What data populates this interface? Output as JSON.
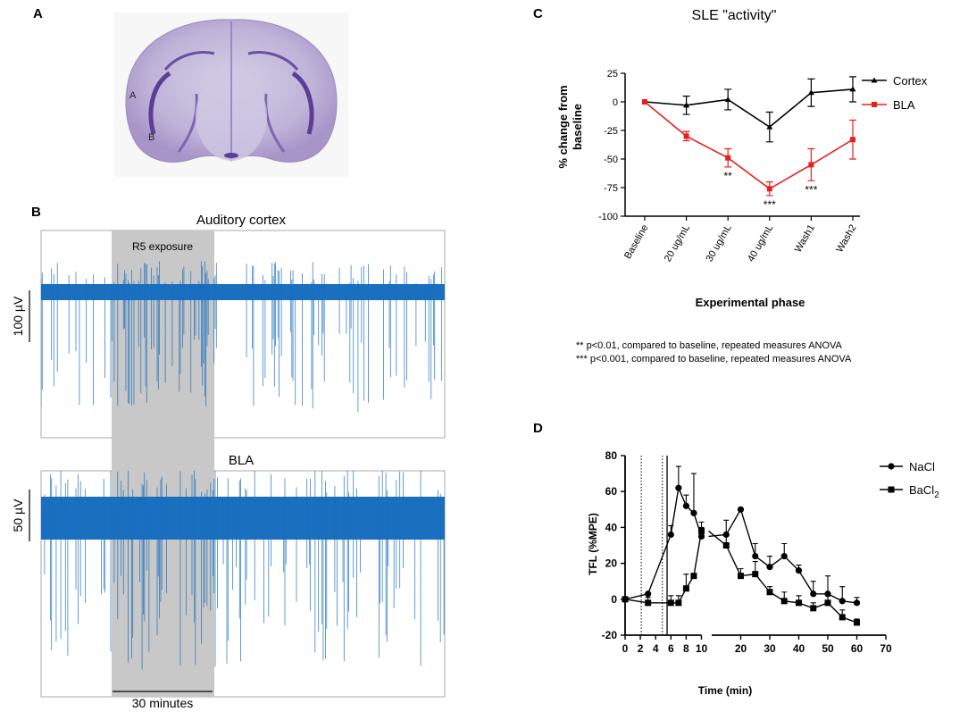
{
  "panels": {
    "a": "A",
    "b": "B",
    "c": "C",
    "d": "D"
  },
  "slice": {
    "label_a": "A",
    "label_b": "B"
  },
  "panel_b": {
    "trace1_title": "Auditory cortex",
    "trace2_title": "BLA",
    "exposure_label": "R5 exposure",
    "scale1": "100 µV",
    "scale2": "50 µV",
    "time_scale": "30 minutes",
    "trace_color": "#1a6fbf",
    "exposure_color": "#c8c8c8"
  },
  "chart_data": [
    {
      "id": "C",
      "type": "line",
      "title": "SLE \"activity\"",
      "xlabel": "Experimental phase",
      "ylabel": "% change from baseline",
      "categories": [
        "Baseline",
        "20 ug/mL",
        "30 ug/mL",
        "40 ug/mL",
        "Wash1",
        "Wash2"
      ],
      "ylim": [
        -100,
        25
      ],
      "yticks": [
        25,
        0,
        -25,
        -50,
        -75,
        -100
      ],
      "series": [
        {
          "name": "Cortex",
          "color": "#000000",
          "marker": "triangle",
          "values": [
            0,
            -3,
            2,
            -22,
            8,
            11
          ],
          "errors": [
            0,
            8,
            9,
            13,
            12,
            11
          ]
        },
        {
          "name": "BLA",
          "color": "#e8201c",
          "marker": "square",
          "values": [
            0,
            -30,
            -49,
            -76,
            -55,
            -33
          ],
          "errors": [
            0,
            4,
            8,
            6,
            14,
            17
          ]
        }
      ],
      "significance": [
        {
          "index": 2,
          "label": "**"
        },
        {
          "index": 3,
          "label": "***"
        },
        {
          "index": 4,
          "label": "***"
        }
      ],
      "footnotes": [
        "** p<0.01, compared to baseline, repeated measures ANOVA",
        "*** p<0.001, compared to baseline, repeated measures ANOVA"
      ]
    },
    {
      "id": "D",
      "type": "line",
      "xlabel": "Time (min)",
      "ylabel": "TFL (%MPE)",
      "ylim": [
        -20,
        80
      ],
      "yticks": [
        -20,
        0,
        20,
        40,
        60,
        80
      ],
      "xticks_left": [
        0,
        2,
        4,
        6,
        8,
        10
      ],
      "xticks_right": [
        20,
        30,
        40,
        50,
        60,
        70
      ],
      "dotted_lines_at": [
        2,
        5
      ],
      "solid_line_at": 5.5,
      "series": [
        {
          "name": "NaCl",
          "marker": "circle",
          "points": [
            [
              0,
              0
            ],
            [
              3,
              3
            ],
            [
              6,
              36
            ],
            [
              7,
              62
            ],
            [
              8,
              52
            ],
            [
              9,
              48
            ],
            [
              10,
              35
            ],
            [
              15,
              36
            ],
            [
              20,
              50
            ],
            [
              25,
              24
            ],
            [
              30,
              18
            ],
            [
              35,
              24
            ],
            [
              40,
              16
            ],
            [
              45,
              3
            ],
            [
              50,
              3
            ],
            [
              55,
              -1
            ],
            [
              60,
              -2
            ]
          ],
          "errors": [
            0,
            0,
            5,
            12,
            6,
            22,
            5,
            8,
            0,
            7,
            6,
            7,
            3,
            7,
            10,
            8,
            3
          ]
        },
        {
          "name": "BaCl",
          "name_sub": "2",
          "marker": "square",
          "points": [
            [
              0,
              0
            ],
            [
              3,
              -2
            ],
            [
              6,
              -2
            ],
            [
              7,
              -2
            ],
            [
              8,
              6
            ],
            [
              9,
              13
            ],
            [
              10,
              38
            ],
            [
              15,
              30
            ],
            [
              20,
              13
            ],
            [
              25,
              14
            ],
            [
              30,
              4
            ],
            [
              35,
              -1
            ],
            [
              40,
              -2
            ],
            [
              45,
              -5
            ],
            [
              50,
              -2
            ],
            [
              55,
              -10
            ],
            [
              60,
              -13
            ]
          ],
          "errors": [
            0,
            3,
            4,
            4,
            8,
            0,
            5,
            6,
            4,
            7,
            3,
            5,
            4,
            3,
            4,
            4,
            2
          ]
        }
      ]
    }
  ]
}
